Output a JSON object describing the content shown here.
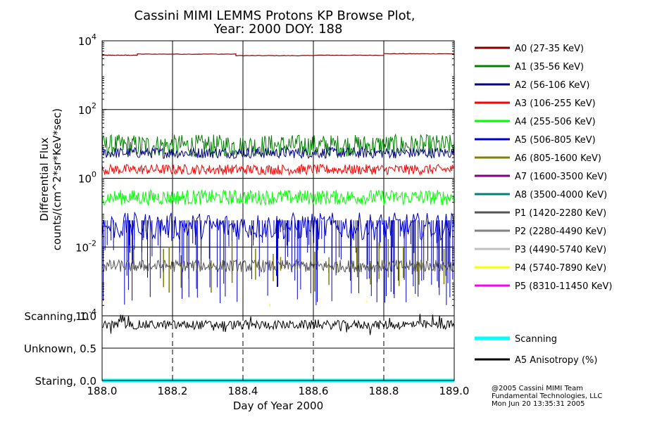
{
  "chart_data": [
    {
      "type": "line",
      "title": "Cassini MIMI LEMMS Protons KP Browse Plot,",
      "subtitle": "Year: 2000 DOY: 188",
      "xlabel": "Day of Year 2000",
      "ylabel": "Differential Flux",
      "ylabel2": "counts/(cm^2*sr*KeV*sec)",
      "xlim": [
        188.0,
        189.0
      ],
      "ylim": [
        0.0001,
        10000
      ],
      "yscale": "log",
      "grid": true,
      "legend_position": "right",
      "x_ticks": [
        "188.0",
        "188.2",
        "188.4",
        "188.6",
        "188.8",
        "189.0"
      ],
      "y_ticks": [
        {
          "value": 10000,
          "base": "10",
          "exp": "4"
        },
        {
          "value": 100,
          "base": "10",
          "exp": "2"
        },
        {
          "value": 1,
          "base": "10",
          "exp": "0"
        },
        {
          "value": 0.01,
          "base": "10",
          "exp": "-2"
        },
        {
          "value": 0.0001,
          "base": "10",
          "exp": "-4"
        }
      ],
      "series": [
        {
          "name": "A0 (27-35 KeV)",
          "color": "#800000",
          "style": "steps",
          "segments": [
            [
              188.0,
              188.1,
              3800
            ],
            [
              188.1,
              188.38,
              4100
            ],
            [
              188.38,
              188.6,
              3700
            ],
            [
              188.6,
              188.8,
              3800
            ],
            [
              188.8,
              189.0,
              4200
            ]
          ]
        },
        {
          "name": "A1 (35-56 KeV)",
          "color": "#008000",
          "style": "noise",
          "level": 9,
          "spread": 0.32
        },
        {
          "name": "A2 (56-106 KeV)",
          "color": "#000080",
          "style": "noise",
          "level": 5.5,
          "spread": 0.16
        },
        {
          "name": "A3 (106-255 KeV)",
          "color": "#ff0000",
          "style": "noise",
          "level": 1.8,
          "spread": 0.15
        },
        {
          "name": "A4 (255-506 KeV)",
          "color": "#00ff00",
          "style": "noise",
          "level": 0.28,
          "spread": 0.22
        },
        {
          "name": "A5 (506-805 KeV)",
          "color": "#0000cc",
          "style": "spiky",
          "level": 0.04,
          "spread": 0.4,
          "drop_min": 0.0002,
          "drop_count": 160
        },
        {
          "name": "A6 (805-1600 KeV)",
          "color": "#808000",
          "style": "sparse",
          "level": 0.008,
          "spread": 0.4,
          "drop_min": 0.0004,
          "drop_count": 24
        },
        {
          "name": "A7 (1600-3500 KeV)",
          "color": "#800080",
          "style": "none"
        },
        {
          "name": "A8 (3500-4000 KeV)",
          "color": "#008080",
          "style": "none"
        },
        {
          "name": "P1 (1420-2280 KeV)",
          "color": "#555555",
          "style": "noise",
          "level": 0.0028,
          "spread": 0.18
        },
        {
          "name": "P2 (2280-4490 KeV)",
          "color": "#808080",
          "style": "none"
        },
        {
          "name": "P3 (4490-5740 KeV)",
          "color": "#c0c0c0",
          "style": "none"
        },
        {
          "name": "P4 (5740-7890 KeV)",
          "color": "#ffff00",
          "style": "sparse",
          "level": 0.00015,
          "spread": 0.3,
          "drop_min": 0.0001,
          "drop_count": 12
        },
        {
          "name": "P5 (8310-11450 KeV)",
          "color": "#ff00ff",
          "style": "none"
        }
      ]
    },
    {
      "type": "line",
      "xlim": [
        188.0,
        189.0
      ],
      "ylim": [
        0.0,
        1.0
      ],
      "y_ticks": [
        {
          "value": 1.0,
          "label": "Scanning, 1.0"
        },
        {
          "value": 0.5,
          "label": "Unknown, 0.5"
        },
        {
          "value": 0.0,
          "label": "Staring, 0.0"
        }
      ],
      "series": [
        {
          "name": "Scanning",
          "color": "#00ffff",
          "style": "flat",
          "level": 0.0
        },
        {
          "name": "A5 Anisotropy (%)",
          "color": "#000000",
          "style": "noise",
          "level": 0.86,
          "spread": 0.07
        }
      ]
    }
  ],
  "footer": {
    "line1": "@2005 Cassini MIMI Team",
    "line2": "Fundamental Technologies, LLC",
    "line3": "Mon Jun 20 13:35:31 2005"
  }
}
